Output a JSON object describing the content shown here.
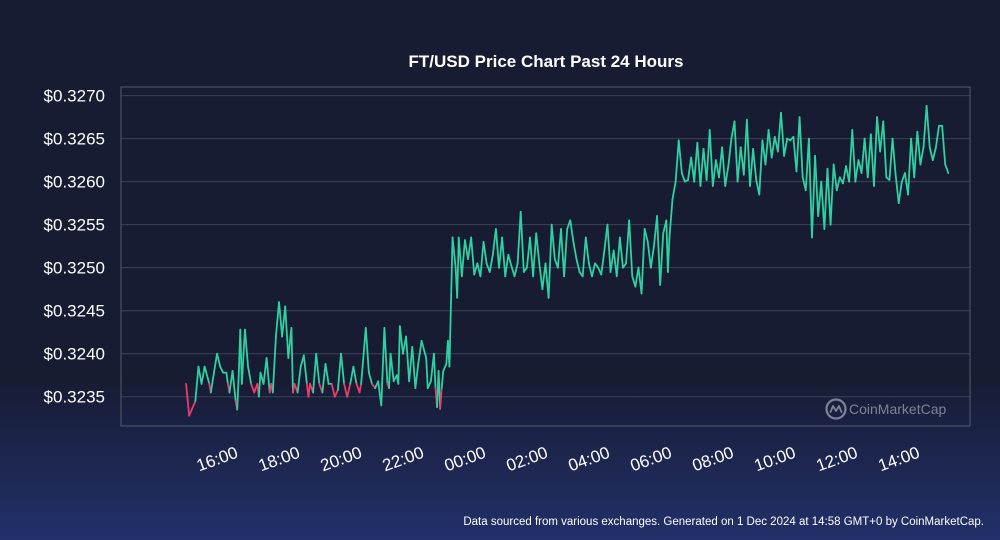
{
  "colors": {
    "background": "#171c33",
    "up": "#2fd0a2",
    "down": "#ea3d6a",
    "grid": "#3b4256",
    "frame": "#555b6e",
    "text": "#ffffff",
    "watermark": "#7d8497"
  },
  "watermark": {
    "text": "CoinMarketCap",
    "icon": "coinmarketcap-logo-icon"
  },
  "footer": "Data sourced from various exchanges. Generated on 1 Dec 2024 at 14:58 GMT+0 by CoinMarketCap.",
  "chart_data": {
    "type": "line",
    "title": "FT/USD Price Chart Past 24 Hours",
    "xlabel": "",
    "ylabel": "",
    "y_tick_values": [
      0.3235,
      0.324,
      0.3245,
      0.325,
      0.3255,
      0.326,
      0.3265,
      0.327
    ],
    "y_tick_labels": [
      "$0.3235",
      "$0.3240",
      "$0.3245",
      "$0.3250",
      "$0.3255",
      "$0.3260",
      "$0.3265",
      "$0.3270"
    ],
    "x_ticks": [
      "16:00",
      "18:00",
      "20:00",
      "22:00",
      "00:00",
      "02:00",
      "04:00",
      "06:00",
      "08:00",
      "10:00",
      "12:00",
      "14:00"
    ],
    "x_tick_hours": [
      16,
      18,
      20,
      22,
      24,
      26,
      28,
      30,
      32,
      34,
      36,
      38
    ],
    "xlim_hours": [
      12.9,
      40.3
    ],
    "ylim": [
      0.32316,
      0.3271
    ],
    "grid": true,
    "baseline": 0.32365,
    "color_rule": "values below baseline drawn in down color",
    "series": [
      {
        "points": [
          [
            15.0,
            0.32365
          ],
          [
            15.1,
            0.32328
          ],
          [
            15.3,
            0.32345
          ],
          [
            15.4,
            0.32385
          ],
          [
            15.5,
            0.32365
          ],
          [
            15.6,
            0.32385
          ],
          [
            15.75,
            0.32365
          ],
          [
            15.8,
            0.32355
          ],
          [
            15.9,
            0.32378
          ],
          [
            16.0,
            0.324
          ],
          [
            16.1,
            0.32385
          ],
          [
            16.2,
            0.32378
          ],
          [
            16.3,
            0.32378
          ],
          [
            16.35,
            0.32365
          ],
          [
            16.4,
            0.32355
          ],
          [
            16.5,
            0.3238
          ],
          [
            16.6,
            0.32345
          ],
          [
            16.65,
            0.32335
          ],
          [
            16.7,
            0.32375
          ],
          [
            16.75,
            0.32428
          ],
          [
            16.8,
            0.32365
          ],
          [
            16.9,
            0.32428
          ],
          [
            17.0,
            0.32385
          ],
          [
            17.1,
            0.32365
          ],
          [
            17.2,
            0.32355
          ],
          [
            17.3,
            0.32365
          ],
          [
            17.35,
            0.3235
          ],
          [
            17.4,
            0.32378
          ],
          [
            17.5,
            0.32365
          ],
          [
            17.6,
            0.32395
          ],
          [
            17.7,
            0.32355
          ],
          [
            17.75,
            0.32365
          ],
          [
            17.8,
            0.32355
          ],
          [
            17.9,
            0.3242
          ],
          [
            18.0,
            0.3246
          ],
          [
            18.1,
            0.3242
          ],
          [
            18.2,
            0.32455
          ],
          [
            18.3,
            0.32395
          ],
          [
            18.4,
            0.3243
          ],
          [
            18.45,
            0.32355
          ],
          [
            18.5,
            0.32365
          ],
          [
            18.6,
            0.32355
          ],
          [
            18.7,
            0.32385
          ],
          [
            18.8,
            0.32398
          ],
          [
            18.9,
            0.32365
          ],
          [
            18.95,
            0.3235
          ],
          [
            19.0,
            0.32365
          ],
          [
            19.1,
            0.32355
          ],
          [
            19.2,
            0.324
          ],
          [
            19.3,
            0.32365
          ],
          [
            19.4,
            0.32355
          ],
          [
            19.5,
            0.32388
          ],
          [
            19.6,
            0.32365
          ],
          [
            19.7,
            0.32365
          ],
          [
            19.8,
            0.3235
          ],
          [
            19.9,
            0.32358
          ],
          [
            20.0,
            0.324
          ],
          [
            20.1,
            0.32365
          ],
          [
            20.2,
            0.3235
          ],
          [
            20.3,
            0.32365
          ],
          [
            20.4,
            0.32385
          ],
          [
            20.5,
            0.32365
          ],
          [
            20.6,
            0.32355
          ],
          [
            20.65,
            0.32365
          ],
          [
            20.8,
            0.3243
          ],
          [
            20.9,
            0.32378
          ],
          [
            21.0,
            0.32365
          ],
          [
            21.1,
            0.3236
          ],
          [
            21.2,
            0.32368
          ],
          [
            21.3,
            0.3234
          ],
          [
            21.4,
            0.3243
          ],
          [
            21.5,
            0.32365
          ],
          [
            21.55,
            0.3236
          ],
          [
            21.6,
            0.324
          ],
          [
            21.7,
            0.32368
          ],
          [
            21.8,
            0.32375
          ],
          [
            21.85,
            0.32365
          ],
          [
            21.9,
            0.32432
          ],
          [
            22.0,
            0.324
          ],
          [
            22.1,
            0.3242
          ],
          [
            22.2,
            0.32368
          ],
          [
            22.3,
            0.32408
          ],
          [
            22.4,
            0.3236
          ],
          [
            22.5,
            0.3239
          ],
          [
            22.6,
            0.32415
          ],
          [
            22.75,
            0.32395
          ],
          [
            22.8,
            0.3236
          ],
          [
            22.9,
            0.32368
          ],
          [
            23.0,
            0.324
          ],
          [
            23.05,
            0.3236
          ],
          [
            23.1,
            0.32338
          ],
          [
            23.15,
            0.3238
          ],
          [
            23.2,
            0.32336
          ],
          [
            23.25,
            0.3236
          ],
          [
            23.3,
            0.3238
          ],
          [
            23.4,
            0.32388
          ],
          [
            23.45,
            0.32415
          ],
          [
            23.5,
            0.32385
          ],
          [
            23.6,
            0.32535
          ],
          [
            23.7,
            0.325
          ],
          [
            23.75,
            0.32465
          ],
          [
            23.8,
            0.32535
          ],
          [
            23.9,
            0.3249
          ],
          [
            24.0,
            0.32532
          ],
          [
            24.1,
            0.3251
          ],
          [
            24.2,
            0.32535
          ],
          [
            24.3,
            0.32492
          ],
          [
            24.4,
            0.32505
          ],
          [
            24.5,
            0.3249
          ],
          [
            24.6,
            0.3253
          ],
          [
            24.7,
            0.32505
          ],
          [
            24.8,
            0.32495
          ],
          [
            24.9,
            0.32515
          ],
          [
            25.0,
            0.32545
          ],
          [
            25.1,
            0.325
          ],
          [
            25.2,
            0.32535
          ],
          [
            25.3,
            0.3249
          ],
          [
            25.4,
            0.32515
          ],
          [
            25.5,
            0.32502
          ],
          [
            25.6,
            0.3249
          ],
          [
            25.7,
            0.32505
          ],
          [
            25.8,
            0.32565
          ],
          [
            25.9,
            0.32495
          ],
          [
            26.0,
            0.325
          ],
          [
            26.1,
            0.32535
          ],
          [
            26.2,
            0.3249
          ],
          [
            26.3,
            0.3254
          ],
          [
            26.4,
            0.32505
          ],
          [
            26.5,
            0.32475
          ],
          [
            26.6,
            0.32505
          ],
          [
            26.7,
            0.32465
          ],
          [
            26.8,
            0.3255
          ],
          [
            26.9,
            0.3251
          ],
          [
            27.0,
            0.325
          ],
          [
            27.1,
            0.32545
          ],
          [
            27.2,
            0.3249
          ],
          [
            27.3,
            0.32545
          ],
          [
            27.4,
            0.32555
          ],
          [
            27.5,
            0.3253
          ],
          [
            27.6,
            0.3251
          ],
          [
            27.7,
            0.32495
          ],
          [
            27.8,
            0.3249
          ],
          [
            27.9,
            0.32535
          ],
          [
            28.0,
            0.32505
          ],
          [
            28.1,
            0.3249
          ],
          [
            28.2,
            0.32505
          ],
          [
            28.3,
            0.325
          ],
          [
            28.4,
            0.32492
          ],
          [
            28.5,
            0.3252
          ],
          [
            28.6,
            0.3255
          ],
          [
            28.7,
            0.32495
          ],
          [
            28.8,
            0.3252
          ],
          [
            28.9,
            0.3249
          ],
          [
            29.0,
            0.32535
          ],
          [
            29.1,
            0.325
          ],
          [
            29.2,
            0.32505
          ],
          [
            29.3,
            0.32555
          ],
          [
            29.4,
            0.3249
          ],
          [
            29.5,
            0.32478
          ],
          [
            29.6,
            0.325
          ],
          [
            29.7,
            0.3247
          ],
          [
            29.8,
            0.32545
          ],
          [
            29.9,
            0.3253
          ],
          [
            30.0,
            0.325
          ],
          [
            30.1,
            0.32525
          ],
          [
            30.2,
            0.3256
          ],
          [
            30.3,
            0.3248
          ],
          [
            30.4,
            0.3254
          ],
          [
            30.5,
            0.32555
          ],
          [
            30.55,
            0.32495
          ],
          [
            30.6,
            0.32535
          ],
          [
            30.7,
            0.3258
          ],
          [
            30.8,
            0.326
          ],
          [
            30.9,
            0.32648
          ],
          [
            31.0,
            0.3261
          ],
          [
            31.1,
            0.326
          ],
          [
            31.2,
            0.32602
          ],
          [
            31.3,
            0.32628
          ],
          [
            31.4,
            0.326
          ],
          [
            31.5,
            0.32645
          ],
          [
            31.6,
            0.32595
          ],
          [
            31.7,
            0.32638
          ],
          [
            31.8,
            0.32602
          ],
          [
            31.9,
            0.3266
          ],
          [
            32.0,
            0.32595
          ],
          [
            32.1,
            0.32625
          ],
          [
            32.2,
            0.32605
          ],
          [
            32.3,
            0.3264
          ],
          [
            32.4,
            0.32595
          ],
          [
            32.5,
            0.32618
          ],
          [
            32.6,
            0.3265
          ],
          [
            32.7,
            0.3267
          ],
          [
            32.8,
            0.326
          ],
          [
            32.9,
            0.3264
          ],
          [
            33.0,
            0.32608
          ],
          [
            33.1,
            0.32672
          ],
          [
            33.2,
            0.32595
          ],
          [
            33.3,
            0.32638
          ],
          [
            33.4,
            0.32602
          ],
          [
            33.5,
            0.32585
          ],
          [
            33.6,
            0.32648
          ],
          [
            33.7,
            0.3262
          ],
          [
            33.8,
            0.3266
          ],
          [
            33.9,
            0.32628
          ],
          [
            34.0,
            0.32652
          ],
          [
            34.1,
            0.32635
          ],
          [
            34.2,
            0.3268
          ],
          [
            34.3,
            0.3263
          ],
          [
            34.4,
            0.3265
          ],
          [
            34.5,
            0.32648
          ],
          [
            34.6,
            0.32652
          ],
          [
            34.7,
            0.32612
          ],
          [
            34.8,
            0.32675
          ],
          [
            34.9,
            0.32605
          ],
          [
            35.0,
            0.3259
          ],
          [
            35.1,
            0.3265
          ],
          [
            35.2,
            0.32535
          ],
          [
            35.3,
            0.3263
          ],
          [
            35.4,
            0.3256
          ],
          [
            35.5,
            0.326
          ],
          [
            35.6,
            0.32545
          ],
          [
            35.7,
            0.32615
          ],
          [
            35.8,
            0.3255
          ],
          [
            35.9,
            0.3262
          ],
          [
            36.0,
            0.3259
          ],
          [
            36.1,
            0.32605
          ],
          [
            36.2,
            0.32598
          ],
          [
            36.3,
            0.32618
          ],
          [
            36.4,
            0.326
          ],
          [
            36.5,
            0.3266
          ],
          [
            36.6,
            0.326
          ],
          [
            36.7,
            0.32625
          ],
          [
            36.8,
            0.3261
          ],
          [
            36.9,
            0.3265
          ],
          [
            37.0,
            0.32605
          ],
          [
            37.1,
            0.32655
          ],
          [
            37.2,
            0.32595
          ],
          [
            37.3,
            0.32675
          ],
          [
            37.4,
            0.32635
          ],
          [
            37.5,
            0.3267
          ],
          [
            37.6,
            0.32605
          ],
          [
            37.7,
            0.32602
          ],
          [
            37.8,
            0.3265
          ],
          [
            37.9,
            0.32608
          ],
          [
            38.0,
            0.32575
          ],
          [
            38.1,
            0.326
          ],
          [
            38.2,
            0.3261
          ],
          [
            38.3,
            0.32585
          ],
          [
            38.4,
            0.3265
          ],
          [
            38.5,
            0.32605
          ],
          [
            38.6,
            0.32658
          ],
          [
            38.7,
            0.3262
          ],
          [
            38.8,
            0.3264
          ],
          [
            38.9,
            0.32688
          ],
          [
            39.0,
            0.3264
          ],
          [
            39.1,
            0.32625
          ],
          [
            39.2,
            0.3264
          ],
          [
            39.3,
            0.32665
          ],
          [
            39.4,
            0.32665
          ],
          [
            39.5,
            0.3262
          ],
          [
            39.6,
            0.3261
          ]
        ]
      }
    ]
  }
}
